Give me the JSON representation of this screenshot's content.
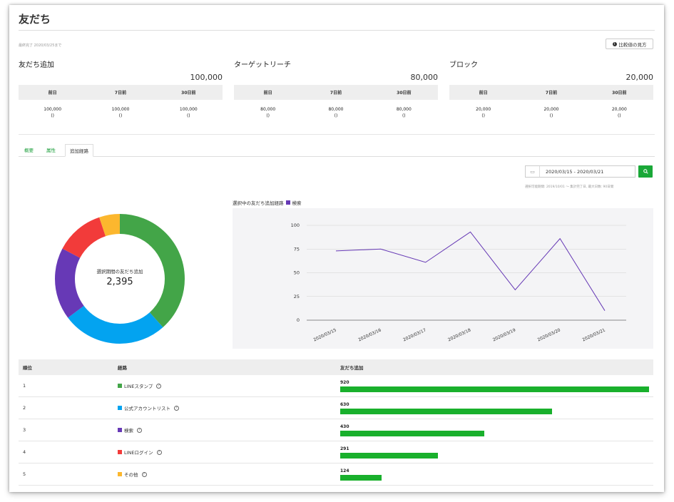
{
  "page": {
    "title": "友だち",
    "updated": "最終完了 2020/03/25まで",
    "compare_button": "比較値の見方"
  },
  "stats": [
    {
      "title": "友だち追加",
      "total": "100,000",
      "headers": [
        "前日",
        "7日前",
        "30日前"
      ],
      "values": [
        "100,000",
        "100,000",
        "100,000"
      ],
      "deltas": [
        "()",
        "()",
        "()"
      ]
    },
    {
      "title": "ターゲットリーチ",
      "total": "80,000",
      "headers": [
        "前日",
        "7日前",
        "30日前"
      ],
      "values": [
        "80,000",
        "80,000",
        "80,000"
      ],
      "deltas": [
        "()",
        "()",
        "()"
      ]
    },
    {
      "title": "ブロック",
      "total": "20,000",
      "headers": [
        "前日",
        "7日前",
        "30日前"
      ],
      "values": [
        "20,000",
        "20,000",
        "20,000"
      ],
      "deltas": [
        "()",
        "()",
        "()"
      ]
    }
  ],
  "tabs": [
    {
      "label": "概要"
    },
    {
      "label": "属性"
    },
    {
      "label": "追加経路",
      "active": true
    }
  ],
  "date_range": {
    "value": "2020/03/15 - 2020/03/21",
    "icon": "calendar-icon",
    "search_icon": "search-icon"
  },
  "note": "選択可能期間: 2019/10/01 ～ 集計完了日, 最大日数: 90日間",
  "donut": {
    "label": "選択期間の友だち追加",
    "value": "2,395"
  },
  "chart_legend": {
    "prefix": "選択中の友だち追加経路",
    "series_label": "検索"
  },
  "chart_data": [
    {
      "type": "pie",
      "title": "",
      "categories": [
        "LINEスタンプ",
        "公式アカウントリスト",
        "検索",
        "LINEログイン",
        "その他"
      ],
      "values": [
        920,
        630,
        430,
        291,
        124
      ],
      "colors": [
        "#43a548",
        "#03a3f0",
        "#6739b6",
        "#f23b3a",
        "#fcb72e"
      ]
    },
    {
      "type": "line",
      "title": "",
      "x": [
        "2020/03/15",
        "2020/03/16",
        "2020/03/17",
        "2020/03/18",
        "2020/03/19",
        "2020/03/20",
        "2020/03/21"
      ],
      "series": [
        {
          "name": "検索",
          "values": [
            73,
            75,
            61,
            93,
            32,
            86,
            10
          ],
          "color": "#6639b5"
        }
      ],
      "yticks": [
        0,
        25,
        50,
        75,
        100
      ],
      "ylim": [
        0,
        100
      ],
      "grid": true
    }
  ],
  "table": {
    "headers": [
      "順位",
      "経路",
      "友だち追加"
    ],
    "max": 920,
    "rows": [
      {
        "rank": "1",
        "name": "LINEスタンプ",
        "color": "#43a548",
        "value": "920"
      },
      {
        "rank": "2",
        "name": "公式アカウントリスト",
        "color": "#03a3f0",
        "value": "630"
      },
      {
        "rank": "3",
        "name": "検索",
        "color": "#6739b6",
        "value": "430"
      },
      {
        "rank": "4",
        "name": "LINEログイン",
        "color": "#f23b3a",
        "value": "291"
      },
      {
        "rank": "5",
        "name": "その他",
        "color": "#fcb72e",
        "value": "124"
      }
    ]
  }
}
